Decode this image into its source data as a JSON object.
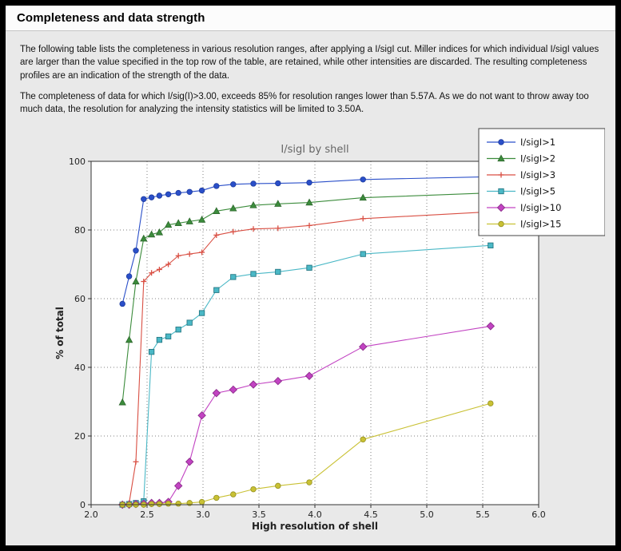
{
  "page": {
    "title": "Completeness and data strength",
    "paragraph1": "The following table lists the completeness in various resolution ranges, after applying a I/sigI cut. Miller indices for which individual I/sigI values are larger than the value specified in the top row of the table, are retained, while other intensities are discarded. The resulting completeness profiles are an indication of the strength of the data.",
    "paragraph2": "The completeness of data for which I/sig(I)>3.00, exceeds  85% for resolution ranges lower than 5.57A. As we do not want to throw away too much data, the resolution for analyzing the intensity statistics will be limited to 3.50A."
  },
  "chart_data": {
    "type": "line",
    "title": "I/sigI by shell",
    "xlabel": "High resolution of shell",
    "ylabel": "% of total",
    "xlim": [
      2.0,
      6.0
    ],
    "ylim": [
      0,
      100
    ],
    "xticks": [
      2.0,
      2.5,
      3.0,
      3.5,
      4.0,
      4.5,
      5.0,
      5.5,
      6.0
    ],
    "xtick_labels": [
      "2.0",
      "2.5",
      "3.0",
      "3.5",
      "4.0",
      "4.5",
      "5.0",
      "5.5",
      "6.0"
    ],
    "yticks": [
      0,
      20,
      40,
      60,
      80,
      100
    ],
    "ytick_labels": [
      "0",
      "20",
      "40",
      "60",
      "80",
      "100"
    ],
    "grid": true,
    "legend_position": "upper right",
    "colors": {
      "plot_background": "#ffffff",
      "page_background": "#e9e9e9",
      "grid": "#808080",
      "axis_frame": "#333333",
      "title_text": "#666666"
    },
    "x": [
      2.28,
      2.34,
      2.4,
      2.47,
      2.54,
      2.61,
      2.69,
      2.78,
      2.88,
      2.99,
      3.12,
      3.27,
      3.45,
      3.67,
      3.95,
      4.43,
      5.57
    ],
    "series": [
      {
        "name": "I/sigI>1",
        "color": "#2a4fc9",
        "edge": "#1c3a9c",
        "marker": "circle",
        "values": [
          58.5,
          66.5,
          74.0,
          89.0,
          89.5,
          90.0,
          90.4,
          90.8,
          91.1,
          91.5,
          92.8,
          93.3,
          93.5,
          93.6,
          93.8,
          94.7,
          95.5
        ]
      },
      {
        "name": "I/sigI>2",
        "color": "#3c8c3c",
        "edge": "#2c672c",
        "marker": "triangle",
        "values": [
          29.8,
          48.0,
          65.0,
          77.5,
          78.7,
          79.3,
          81.5,
          82.0,
          82.5,
          83.0,
          85.5,
          86.3,
          87.2,
          87.6,
          88.0,
          89.4,
          90.8
        ]
      },
      {
        "name": "I/sigI>3",
        "color": "#d94f43",
        "edge": "#a93328",
        "marker": "plus",
        "values": [
          0.0,
          0.5,
          12.5,
          65.0,
          67.5,
          68.5,
          70.0,
          72.5,
          73.0,
          73.5,
          78.5,
          79.5,
          80.3,
          80.5,
          81.3,
          83.3,
          85.3
        ]
      },
      {
        "name": "I/sigI>5",
        "color": "#4ab8c6",
        "edge": "#267884",
        "marker": "square",
        "values": [
          0.0,
          0.2,
          0.5,
          1.0,
          44.5,
          48.0,
          49.0,
          51.0,
          53.0,
          55.8,
          62.5,
          66.3,
          67.2,
          67.8,
          69.0,
          73.0,
          75.5
        ]
      },
      {
        "name": "I/sigI>10",
        "color": "#c243c2",
        "edge": "#8c2e8c",
        "marker": "diamond",
        "values": [
          0.0,
          0.0,
          0.2,
          0.3,
          0.5,
          0.5,
          0.8,
          5.5,
          12.5,
          26.0,
          32.5,
          33.5,
          35.0,
          36.0,
          37.5,
          46.0,
          52.0
        ]
      },
      {
        "name": "I/sigI>15",
        "color": "#c9c134",
        "edge": "#94901f",
        "marker": "circle",
        "values": [
          0.0,
          0.0,
          0.0,
          0.0,
          0.2,
          0.2,
          0.3,
          0.3,
          0.5,
          0.8,
          2.0,
          3.0,
          4.5,
          5.5,
          6.5,
          19.0,
          29.5
        ]
      }
    ]
  }
}
